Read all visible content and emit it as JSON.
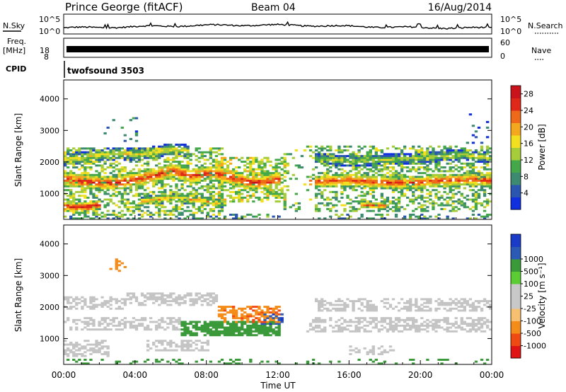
{
  "header": {
    "station": "Prince George (fitACF)",
    "beam": "Beam 04",
    "date": "16/Aug/2014"
  },
  "strip_labels": {
    "nsky": "N.Sky",
    "nsearch": "N.Search",
    "nsky_ticks": [
      "10^5",
      "10^0"
    ],
    "nsearch_ticks": [
      "10^5",
      "10^0"
    ],
    "freq_line1": "Freq.",
    "freq_line2": "[MHz]",
    "freq_ticks": [
      "18",
      "8"
    ],
    "nave": "Nave",
    "nave_ticks": [
      "60",
      "0"
    ],
    "cpid": "CPID",
    "cpid_value": "twofsound 3503"
  },
  "colors": {
    "power_scale": [
      "#1030e0",
      "#2a56b0",
      "#3c8a70",
      "#44a84a",
      "#a6cc3a",
      "#f2e020",
      "#f4a81e",
      "#ee6a18",
      "#e02818",
      "#c8141a"
    ],
    "velocity_scale": [
      "#e01414",
      "#f04a14",
      "#f48c1a",
      "#f6c070",
      "#c8c8c8",
      "#c8c8c8",
      "#5acd32",
      "#3a9a3a",
      "#2a5ab4",
      "#1a3ac8"
    ],
    "ground_scatter": "#c4c4c4"
  },
  "chart_data": [
    {
      "type": "heatmap",
      "title": "",
      "xlabel": "Time UT",
      "ylabel": "Slant Range [km]",
      "xlim": [
        0,
        24
      ],
      "ylim": [
        180,
        4600
      ],
      "x_ticks": [
        "00:00",
        "04:00",
        "08:00",
        "12:00",
        "16:00",
        "20:00",
        "00:00"
      ],
      "y_ticks": [
        1000,
        2000,
        3000,
        4000
      ],
      "colorbar_label": "Power [dB]",
      "colorbar_ticks": [
        4,
        8,
        12,
        16,
        20,
        24,
        28
      ],
      "colorbar_range": [
        0,
        30
      ],
      "bands": [
        {
          "t": [
            0,
            0.8,
            1.5,
            3,
            4.5,
            6,
            7,
            8.5,
            9.5,
            10.5,
            11.5,
            12
          ],
          "r": [
            1420,
            1380,
            1320,
            1320,
            1480,
            1700,
            1540,
            1620,
            1460,
            1320,
            1360,
            1420
          ],
          "w": 150,
          "p": 26
        },
        {
          "t": [
            13.5,
            15,
            16,
            17,
            18,
            19,
            20,
            21,
            22,
            23,
            24
          ],
          "r": [
            1320,
            1380,
            1400,
            1350,
            1320,
            1300,
            1340,
            1380,
            1400,
            1420,
            1380
          ],
          "w": 130,
          "p": 25
        },
        {
          "t": [
            0,
            1,
            2,
            3,
            4,
            5,
            6,
            7
          ],
          "r": [
            2050,
            2120,
            2200,
            2240,
            2200,
            2280,
            2380,
            2320
          ],
          "w": 120,
          "p": 17
        },
        {
          "t": [
            14,
            16,
            18,
            20,
            21,
            22,
            23,
            24
          ],
          "r": [
            2080,
            2000,
            2050,
            2100,
            2150,
            2200,
            2150,
            2100
          ],
          "w": 110,
          "p": 15
        },
        {
          "t": [
            0,
            0.5,
            1.3,
            2
          ],
          "r": [
            560,
            540,
            560,
            600
          ],
          "w": 100,
          "p": 27
        },
        {
          "t": [
            4.2,
            5,
            6,
            7,
            8,
            9
          ],
          "r": [
            700,
            780,
            820,
            780,
            720,
            660
          ],
          "w": 90,
          "p": 20
        },
        {
          "t": [
            16.5,
            17.3,
            18
          ],
          "r": [
            620,
            600,
            580
          ],
          "w": 70,
          "p": 24
        }
      ],
      "patches": [
        {
          "t0": 0,
          "t1": 8.8,
          "r0": 280,
          "r1": 2450,
          "p": 12,
          "d": 0.45
        },
        {
          "t0": 8.5,
          "t1": 12.5,
          "r0": 700,
          "r1": 2150,
          "p": 14,
          "d": 0.5
        },
        {
          "t0": 12.3,
          "t1": 24,
          "r0": 400,
          "r1": 2500,
          "p": 11,
          "d": 0.4
        },
        {
          "t0": 2,
          "t1": 4,
          "r0": 2600,
          "r1": 3500,
          "p": 6,
          "d": 0.07
        },
        {
          "t0": 22.5,
          "t1": 24,
          "r0": 2500,
          "r1": 3500,
          "p": 5,
          "d": 0.08
        },
        {
          "t0": 0,
          "t1": 24,
          "r0": 180,
          "r1": 330,
          "p": 8,
          "d": 0.35
        }
      ]
    },
    {
      "type": "heatmap",
      "title": "",
      "xlabel": "Time UT",
      "ylabel": "Slant Range [km]",
      "xlim": [
        0,
        24
      ],
      "ylim": [
        180,
        4600
      ],
      "x_ticks": [
        "00:00",
        "04:00",
        "08:00",
        "12:00",
        "16:00",
        "20:00",
        "00:00"
      ],
      "y_ticks": [
        1000,
        2000,
        3000,
        4000
      ],
      "colorbar_label": "Velocity [m s⁻¹]",
      "colorbar_ticks": [
        -1000,
        -500,
        -100,
        -25,
        25,
        100,
        500,
        1000
      ],
      "colorbar_range": [
        -1250,
        1250
      ],
      "ground_regions": [
        {
          "t0": 0,
          "t1": 3.5,
          "r0": 1900,
          "r1": 2300,
          "d": 0.55
        },
        {
          "t0": 3.5,
          "t1": 8.5,
          "r0": 2000,
          "r1": 2400,
          "d": 0.55
        },
        {
          "t0": 0,
          "t1": 6.5,
          "r0": 1250,
          "r1": 1650,
          "d": 0.5
        },
        {
          "t0": 0,
          "t1": 2.5,
          "r0": 400,
          "r1": 900,
          "d": 0.5
        },
        {
          "t0": 4.5,
          "t1": 8,
          "r0": 600,
          "r1": 900,
          "d": 0.5
        },
        {
          "t0": 13.5,
          "t1": 24,
          "r0": 1150,
          "r1": 1650,
          "d": 0.5
        },
        {
          "t0": 14,
          "t1": 24,
          "r0": 1850,
          "r1": 2250,
          "d": 0.45
        },
        {
          "t0": 16,
          "t1": 18.5,
          "r0": 450,
          "r1": 750,
          "d": 0.35
        }
      ],
      "velocity_regions": [
        {
          "t0": 6.5,
          "t1": 12,
          "r0": 1050,
          "r1": 1550,
          "v": 300,
          "d": 0.8
        },
        {
          "t0": 8.5,
          "t1": 12,
          "r0": 1500,
          "r1": 2000,
          "v": -400,
          "d": 0.55
        },
        {
          "t0": 11,
          "t1": 12.3,
          "r0": 1400,
          "r1": 1750,
          "v": 800,
          "d": 0.4
        },
        {
          "t0": 2.5,
          "t1": 3.5,
          "r0": 3100,
          "r1": 3500,
          "v": -300,
          "d": 0.25
        },
        {
          "t0": 0,
          "t1": 24,
          "r0": 180,
          "r1": 320,
          "v": 200,
          "d": 0.18
        }
      ]
    }
  ]
}
